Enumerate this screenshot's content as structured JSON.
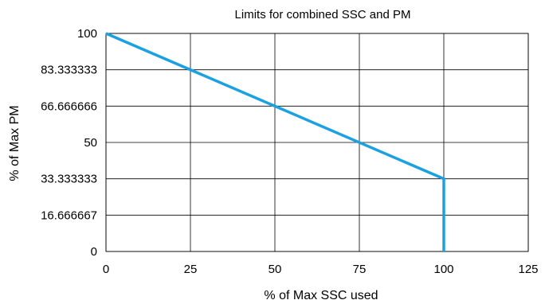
{
  "chart_data": {
    "type": "line",
    "title": "Limits for combined SSC and PM",
    "xlabel": "% of Max SSC used",
    "ylabel": "% of Max PM",
    "xlim": [
      0,
      125
    ],
    "ylim": [
      0,
      100
    ],
    "x_ticks": [
      0,
      25,
      50,
      75,
      100,
      125
    ],
    "x_tick_labels": [
      "0",
      "25",
      "50",
      "75",
      "100",
      "125"
    ],
    "y_ticks": [
      0,
      16.666667,
      33.333333,
      50,
      66.666666,
      83.333333,
      100
    ],
    "y_tick_labels": [
      "0",
      "16.666667",
      "33.333333",
      "50",
      "66.666666",
      "83.333333",
      "100"
    ],
    "grid": true,
    "series": [
      {
        "color": "#1ba1e2",
        "points": [
          [
            0,
            100
          ],
          [
            100,
            33.333333
          ],
          [
            100,
            0
          ]
        ]
      }
    ]
  }
}
